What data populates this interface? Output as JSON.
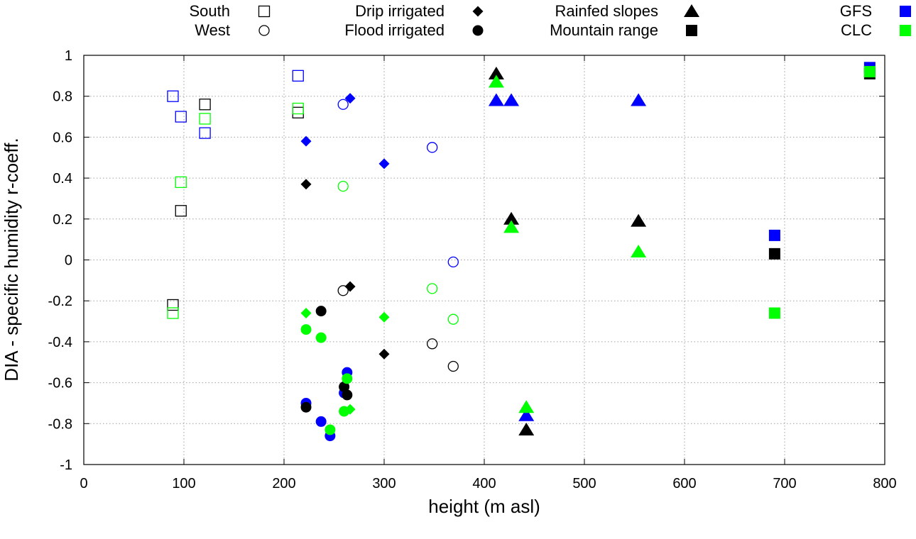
{
  "chart_data": {
    "type": "scatter",
    "title": "",
    "xlabel": "height (m asl)",
    "ylabel": "DIA - specific humidity r-coeff.",
    "xlim": [
      0,
      800
    ],
    "ylim": [
      -1,
      1
    ],
    "xticks": [
      "0",
      "100",
      "200",
      "300",
      "400",
      "500",
      "600",
      "700",
      "800"
    ],
    "yticks": [
      "-1",
      "-0.8",
      "-0.6",
      "-0.4",
      "-0.2",
      "0",
      "0.2",
      "0.4",
      "0.6",
      "0.8",
      "1"
    ],
    "grid": true,
    "legend": {
      "shapes": [
        {
          "label": "South",
          "shape": "square-open"
        },
        {
          "label": "West",
          "shape": "circle-open"
        },
        {
          "label": "Drip irrigated",
          "shape": "diamond"
        },
        {
          "label": "Flood irrigated",
          "shape": "circle"
        },
        {
          "label": "Rainfed slopes",
          "shape": "triangle"
        },
        {
          "label": "Mountain range",
          "shape": "square"
        }
      ],
      "colors": [
        {
          "label": "GFS",
          "color": "#0000ff"
        },
        {
          "label": "CLC",
          "color": "#00ff00"
        }
      ]
    },
    "series": [
      {
        "name": "South",
        "marker": "square-open",
        "points": [
          {
            "x": 89,
            "y": 0.8,
            "color": "#0000ff"
          },
          {
            "x": 97,
            "y": 0.7,
            "color": "#0000ff"
          },
          {
            "x": 121,
            "y": 0.62,
            "color": "#0000ff"
          },
          {
            "x": 214,
            "y": 0.9,
            "color": "#0000ff"
          },
          {
            "x": 121,
            "y": 0.76,
            "color": "#000000"
          },
          {
            "x": 214,
            "y": 0.72,
            "color": "#000000"
          },
          {
            "x": 97,
            "y": 0.24,
            "color": "#000000"
          },
          {
            "x": 89,
            "y": -0.22,
            "color": "#000000"
          },
          {
            "x": 121,
            "y": 0.69,
            "color": "#00ff00"
          },
          {
            "x": 214,
            "y": 0.74,
            "color": "#00ff00"
          },
          {
            "x": 97,
            "y": 0.38,
            "color": "#00ff00"
          },
          {
            "x": 89,
            "y": -0.26,
            "color": "#00ff00"
          }
        ]
      },
      {
        "name": "West",
        "marker": "circle-open",
        "points": [
          {
            "x": 259,
            "y": 0.76,
            "color": "#0000ff"
          },
          {
            "x": 348,
            "y": 0.55,
            "color": "#0000ff"
          },
          {
            "x": 369,
            "y": -0.01,
            "color": "#0000ff"
          },
          {
            "x": 259,
            "y": -0.15,
            "color": "#000000"
          },
          {
            "x": 348,
            "y": -0.41,
            "color": "#000000"
          },
          {
            "x": 369,
            "y": -0.52,
            "color": "#000000"
          },
          {
            "x": 259,
            "y": 0.36,
            "color": "#00ff00"
          },
          {
            "x": 348,
            "y": -0.14,
            "color": "#00ff00"
          },
          {
            "x": 369,
            "y": -0.29,
            "color": "#00ff00"
          }
        ]
      },
      {
        "name": "Drip irrigated",
        "marker": "diamond",
        "points": [
          {
            "x": 266,
            "y": 0.79,
            "color": "#0000ff"
          },
          {
            "x": 222,
            "y": 0.58,
            "color": "#0000ff"
          },
          {
            "x": 300,
            "y": 0.47,
            "color": "#0000ff"
          },
          {
            "x": 222,
            "y": 0.37,
            "color": "#000000"
          },
          {
            "x": 266,
            "y": -0.13,
            "color": "#000000"
          },
          {
            "x": 300,
            "y": -0.46,
            "color": "#000000"
          },
          {
            "x": 222,
            "y": -0.26,
            "color": "#00ff00"
          },
          {
            "x": 300,
            "y": -0.28,
            "color": "#00ff00"
          },
          {
            "x": 266,
            "y": -0.73,
            "color": "#00ff00"
          }
        ]
      },
      {
        "name": "Flood irrigated",
        "marker": "circle",
        "points": [
          {
            "x": 222,
            "y": -0.7,
            "color": "#0000ff"
          },
          {
            "x": 237,
            "y": -0.79,
            "color": "#0000ff"
          },
          {
            "x": 246,
            "y": -0.86,
            "color": "#0000ff"
          },
          {
            "x": 260,
            "y": -0.65,
            "color": "#0000ff"
          },
          {
            "x": 263,
            "y": -0.55,
            "color": "#0000ff"
          },
          {
            "x": 222,
            "y": -0.72,
            "color": "#000000"
          },
          {
            "x": 237,
            "y": -0.25,
            "color": "#000000"
          },
          {
            "x": 260,
            "y": -0.62,
            "color": "#000000"
          },
          {
            "x": 263,
            "y": -0.66,
            "color": "#000000"
          },
          {
            "x": 222,
            "y": -0.34,
            "color": "#00ff00"
          },
          {
            "x": 237,
            "y": -0.38,
            "color": "#00ff00"
          },
          {
            "x": 246,
            "y": -0.83,
            "color": "#00ff00"
          },
          {
            "x": 260,
            "y": -0.74,
            "color": "#00ff00"
          },
          {
            "x": 263,
            "y": -0.58,
            "color": "#00ff00"
          }
        ]
      },
      {
        "name": "Rainfed slopes",
        "marker": "triangle",
        "points": [
          {
            "x": 412,
            "y": 0.78,
            "color": "#0000ff"
          },
          {
            "x": 427,
            "y": 0.78,
            "color": "#0000ff"
          },
          {
            "x": 554,
            "y": 0.78,
            "color": "#0000ff"
          },
          {
            "x": 442,
            "y": -0.76,
            "color": "#0000ff"
          },
          {
            "x": 412,
            "y": 0.91,
            "color": "#000000"
          },
          {
            "x": 427,
            "y": 0.2,
            "color": "#000000"
          },
          {
            "x": 554,
            "y": 0.19,
            "color": "#000000"
          },
          {
            "x": 442,
            "y": -0.83,
            "color": "#000000"
          },
          {
            "x": 412,
            "y": 0.87,
            "color": "#00ff00"
          },
          {
            "x": 427,
            "y": 0.16,
            "color": "#00ff00"
          },
          {
            "x": 554,
            "y": 0.04,
            "color": "#00ff00"
          },
          {
            "x": 442,
            "y": -0.72,
            "color": "#00ff00"
          }
        ]
      },
      {
        "name": "Mountain range",
        "marker": "square",
        "points": [
          {
            "x": 785,
            "y": 0.94,
            "color": "#0000ff"
          },
          {
            "x": 690,
            "y": 0.12,
            "color": "#0000ff"
          },
          {
            "x": 785,
            "y": 0.91,
            "color": "#000000"
          },
          {
            "x": 690,
            "y": 0.03,
            "color": "#000000"
          },
          {
            "x": 785,
            "y": 0.92,
            "color": "#00ff00"
          },
          {
            "x": 690,
            "y": -0.26,
            "color": "#00ff00"
          }
        ]
      }
    ]
  }
}
